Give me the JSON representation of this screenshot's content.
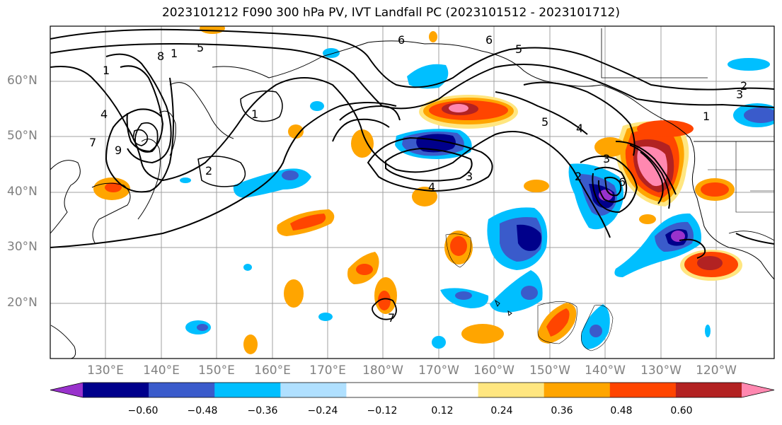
{
  "title": "2023101212 F090 300 hPa PV, IVT Landfall PC (2023101512 - 2023101712)",
  "lat_labels": [
    "60°N",
    "50°N",
    "40°N",
    "30°N",
    "20°N"
  ],
  "lon_labels": [
    "130°E",
    "140°E",
    "150°E",
    "160°E",
    "170°E",
    "180°W",
    "170°W",
    "160°W",
    "150°W",
    "140°W",
    "130°W",
    "120°W"
  ],
  "colorbar": {
    "colors": [
      "#9932CC",
      "#00008B",
      "#3A5BCB",
      "#00BFFF",
      "#B0E0FF",
      "#FFFFFF",
      "#FFFFFF",
      "#FFE680",
      "#FFA500",
      "#FF4500",
      "#B22222",
      "#FF88B0"
    ],
    "labels": [
      "−0.60",
      "−0.48",
      "−0.36",
      "−0.24",
      "−0.12",
      "0.12",
      "0.24",
      "0.36",
      "0.48",
      "0.60"
    ]
  },
  "contour_labels": [
    "1",
    "2",
    "3",
    "4",
    "5",
    "6",
    "7",
    "8",
    "9",
    "1",
    "2",
    "3",
    "4",
    "5",
    "6",
    "6",
    "5",
    "4",
    "1",
    "2",
    "3",
    "1",
    "7"
  ]
}
